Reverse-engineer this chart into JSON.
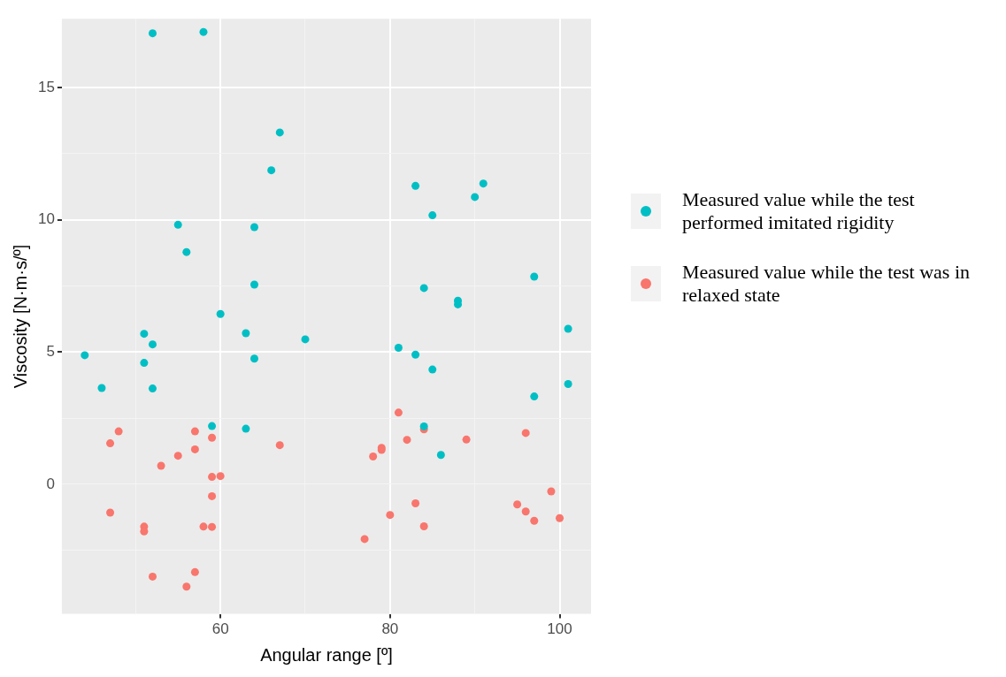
{
  "chart_data": {
    "type": "scatter",
    "xlabel": "Angular range [º]",
    "ylabel": "Viscosity [N·m·s/º]",
    "xlim": [
      41.3,
      103.7
    ],
    "ylim": [
      -4.9,
      17.6
    ],
    "xticks": [
      {
        "value": 50,
        "label": null
      },
      60,
      {
        "value": 70,
        "label": null
      },
      80,
      {
        "value": 90,
        "label": null
      },
      100
    ],
    "yticks": [
      {
        "value": -2.5,
        "label": null
      },
      0,
      {
        "value": 2.5,
        "label": null
      },
      5,
      {
        "value": 7.5,
        "label": null
      },
      10,
      {
        "value": 12.5,
        "label": null
      },
      15
    ],
    "grid": true,
    "legend": "right",
    "marker": "circle",
    "series": [
      {
        "name": "Measured value while the test performed imitated rigidity",
        "color": "#00bfc4",
        "x": [
          52,
          58,
          67,
          66,
          55,
          64,
          56,
          64,
          60,
          51,
          63,
          70,
          52,
          44,
          64,
          51,
          46,
          52,
          59,
          63,
          83,
          91,
          90,
          85,
          97,
          84,
          88,
          88,
          101,
          81,
          83,
          85,
          101,
          97,
          84,
          86
        ],
        "values": [
          17.05,
          17.1,
          13.3,
          11.87,
          9.81,
          9.72,
          8.78,
          7.55,
          6.44,
          5.69,
          5.71,
          5.48,
          5.29,
          4.88,
          4.75,
          4.59,
          3.64,
          3.62,
          2.2,
          2.1,
          11.28,
          11.37,
          10.86,
          10.17,
          7.85,
          7.42,
          6.94,
          6.8,
          5.88,
          5.16,
          4.9,
          4.34,
          3.79,
          3.32,
          2.19,
          1.11
        ]
      },
      {
        "name": "Measured value while the test was in relaxed state",
        "color": "#f8766d",
        "x": [
          48,
          57,
          47,
          59,
          67,
          57,
          55,
          53,
          59,
          60,
          59,
          47,
          51,
          51,
          58,
          59,
          57,
          52,
          56,
          81,
          84,
          82,
          89,
          96,
          79,
          79,
          78,
          99,
          83,
          95,
          96,
          80,
          100,
          97,
          84,
          77
        ],
        "values": [
          2.0,
          2.0,
          1.55,
          1.76,
          1.48,
          1.32,
          1.08,
          0.7,
          0.28,
          0.31,
          -0.45,
          -1.07,
          -1.6,
          -1.78,
          -1.6,
          -1.61,
          -3.32,
          -3.49,
          -3.87,
          2.71,
          2.08,
          1.68,
          1.69,
          1.94,
          1.38,
          1.3,
          1.05,
          -0.27,
          -0.72,
          -0.76,
          -1.03,
          -1.16,
          -1.28,
          -1.38,
          -1.59,
          -2.07
        ]
      }
    ]
  }
}
